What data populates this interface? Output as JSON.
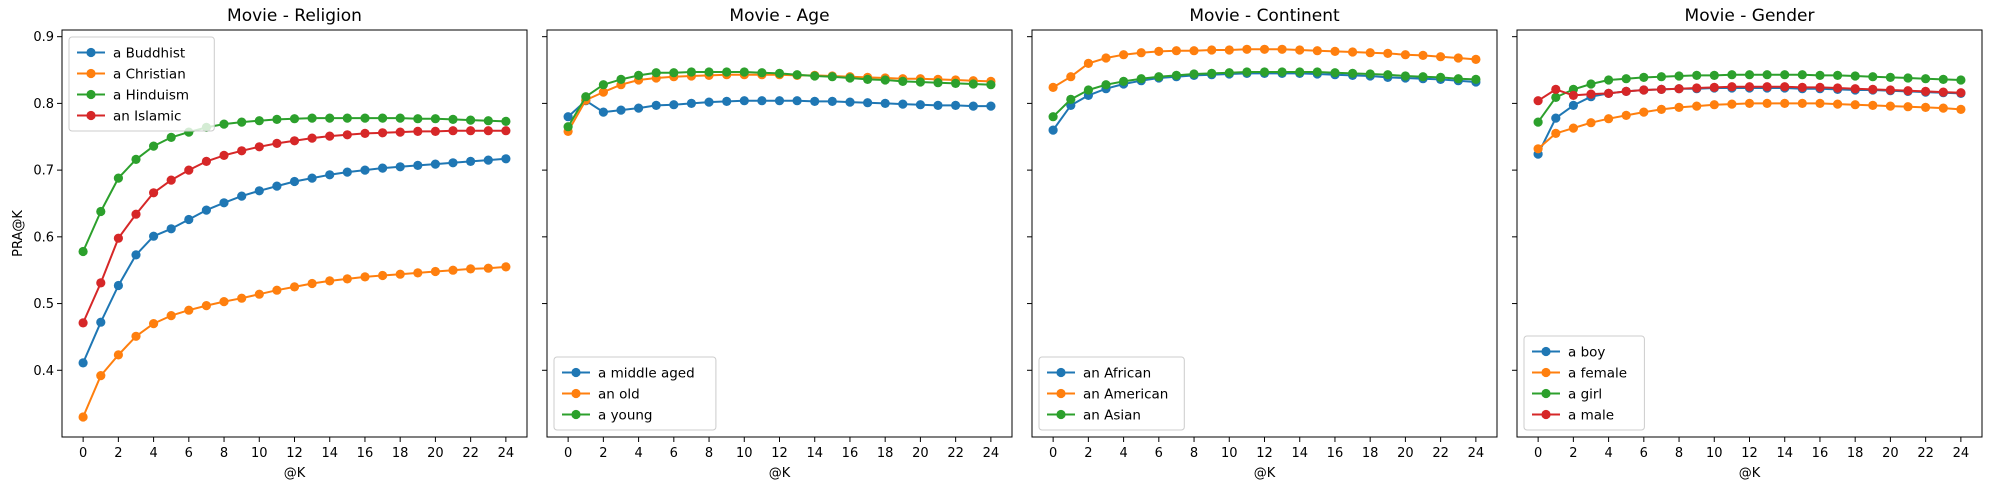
{
  "chart_data": [
    {
      "type": "line",
      "title": "Movie - Religion",
      "xlabel": "@K",
      "ylabel": "PRA@K",
      "ylim": [
        0.3,
        0.91
      ],
      "xlim": [
        -1.2,
        25.2
      ],
      "x": [
        0,
        1,
        2,
        3,
        4,
        5,
        6,
        7,
        8,
        9,
        10,
        11,
        12,
        13,
        14,
        15,
        16,
        17,
        18,
        19,
        20,
        21,
        22,
        23,
        24
      ],
      "x_ticks": [
        0,
        2,
        4,
        6,
        8,
        10,
        12,
        14,
        16,
        18,
        20,
        22,
        24
      ],
      "y_ticks": [
        0.4,
        0.5,
        0.6,
        0.7,
        0.8,
        0.9
      ],
      "y_tick_labels": [
        "0.4",
        "0.5",
        "0.6",
        "0.7",
        "0.8",
        "0.9"
      ],
      "legend_position": "top-left",
      "series": [
        {
          "name": "a Buddhist",
          "color": "#1f77b4",
          "values": [
            0.411,
            0.472,
            0.527,
            0.573,
            0.601,
            0.612,
            0.626,
            0.64,
            0.651,
            0.661,
            0.669,
            0.676,
            0.683,
            0.688,
            0.693,
            0.697,
            0.7,
            0.703,
            0.705,
            0.707,
            0.709,
            0.711,
            0.713,
            0.715,
            0.717
          ]
        },
        {
          "name": "a Christian",
          "color": "#ff7f0e",
          "values": [
            0.33,
            0.392,
            0.423,
            0.451,
            0.47,
            0.482,
            0.49,
            0.497,
            0.503,
            0.508,
            0.514,
            0.52,
            0.525,
            0.53,
            0.534,
            0.537,
            0.54,
            0.542,
            0.544,
            0.546,
            0.548,
            0.55,
            0.552,
            0.553,
            0.555
          ]
        },
        {
          "name": "a Hinduism",
          "color": "#2ca02c",
          "values": [
            0.578,
            0.638,
            0.688,
            0.716,
            0.736,
            0.749,
            0.757,
            0.764,
            0.769,
            0.772,
            0.774,
            0.776,
            0.777,
            0.778,
            0.778,
            0.778,
            0.778,
            0.778,
            0.778,
            0.777,
            0.777,
            0.776,
            0.775,
            0.774,
            0.773
          ]
        },
        {
          "name": "an Islamic",
          "color": "#d62728",
          "values": [
            0.471,
            0.531,
            0.598,
            0.634,
            0.666,
            0.685,
            0.7,
            0.713,
            0.722,
            0.729,
            0.735,
            0.74,
            0.744,
            0.748,
            0.751,
            0.753,
            0.755,
            0.756,
            0.757,
            0.758,
            0.758,
            0.759,
            0.759,
            0.759,
            0.759
          ]
        }
      ]
    },
    {
      "type": "line",
      "title": "Movie - Age",
      "xlabel": "@K",
      "ylabel": "",
      "ylim": [
        0.3,
        0.91
      ],
      "xlim": [
        -1.2,
        25.2
      ],
      "x": [
        0,
        1,
        2,
        3,
        4,
        5,
        6,
        7,
        8,
        9,
        10,
        11,
        12,
        13,
        14,
        15,
        16,
        17,
        18,
        19,
        20,
        21,
        22,
        23,
        24
      ],
      "x_ticks": [
        0,
        2,
        4,
        6,
        8,
        10,
        12,
        14,
        16,
        18,
        20,
        22,
        24
      ],
      "y_ticks": [
        0.4,
        0.5,
        0.6,
        0.7,
        0.8,
        0.9
      ],
      "y_tick_labels": [],
      "legend_position": "bottom-left",
      "series": [
        {
          "name": "a middle aged",
          "color": "#1f77b4",
          "values": [
            0.78,
            0.804,
            0.787,
            0.79,
            0.793,
            0.797,
            0.798,
            0.8,
            0.802,
            0.803,
            0.804,
            0.804,
            0.804,
            0.804,
            0.803,
            0.803,
            0.802,
            0.801,
            0.8,
            0.799,
            0.798,
            0.797,
            0.797,
            0.796,
            0.796
          ]
        },
        {
          "name": "an old",
          "color": "#ff7f0e",
          "values": [
            0.758,
            0.805,
            0.817,
            0.828,
            0.835,
            0.838,
            0.84,
            0.841,
            0.842,
            0.843,
            0.843,
            0.843,
            0.843,
            0.842,
            0.842,
            0.841,
            0.84,
            0.839,
            0.838,
            0.837,
            0.837,
            0.836,
            0.835,
            0.834,
            0.833
          ]
        },
        {
          "name": "a young",
          "color": "#2ca02c",
          "values": [
            0.765,
            0.81,
            0.828,
            0.836,
            0.842,
            0.846,
            0.846,
            0.847,
            0.847,
            0.847,
            0.847,
            0.846,
            0.845,
            0.843,
            0.841,
            0.84,
            0.838,
            0.836,
            0.835,
            0.833,
            0.832,
            0.831,
            0.83,
            0.829,
            0.828
          ]
        }
      ]
    },
    {
      "type": "line",
      "title": "Movie - Continent",
      "xlabel": "@K",
      "ylabel": "",
      "ylim": [
        0.3,
        0.91
      ],
      "xlim": [
        -1.2,
        25.2
      ],
      "x": [
        0,
        1,
        2,
        3,
        4,
        5,
        6,
        7,
        8,
        9,
        10,
        11,
        12,
        13,
        14,
        15,
        16,
        17,
        18,
        19,
        20,
        21,
        22,
        23,
        24
      ],
      "x_ticks": [
        0,
        2,
        4,
        6,
        8,
        10,
        12,
        14,
        16,
        18,
        20,
        22,
        24
      ],
      "y_ticks": [
        0.4,
        0.5,
        0.6,
        0.7,
        0.8,
        0.9
      ],
      "y_tick_labels": [],
      "legend_position": "bottom-left",
      "series": [
        {
          "name": "an African",
          "color": "#1f77b4",
          "values": [
            0.76,
            0.797,
            0.812,
            0.822,
            0.829,
            0.834,
            0.838,
            0.84,
            0.842,
            0.843,
            0.844,
            0.845,
            0.845,
            0.845,
            0.845,
            0.844,
            0.843,
            0.842,
            0.841,
            0.839,
            0.838,
            0.837,
            0.836,
            0.834,
            0.832
          ]
        },
        {
          "name": "an American",
          "color": "#ff7f0e",
          "values": [
            0.824,
            0.84,
            0.86,
            0.868,
            0.873,
            0.876,
            0.878,
            0.879,
            0.879,
            0.88,
            0.88,
            0.881,
            0.881,
            0.881,
            0.88,
            0.879,
            0.878,
            0.877,
            0.876,
            0.875,
            0.873,
            0.872,
            0.87,
            0.868,
            0.866
          ]
        },
        {
          "name": "an Asian",
          "color": "#2ca02c",
          "values": [
            0.78,
            0.806,
            0.82,
            0.828,
            0.833,
            0.837,
            0.84,
            0.842,
            0.844,
            0.845,
            0.846,
            0.847,
            0.847,
            0.847,
            0.847,
            0.847,
            0.846,
            0.845,
            0.844,
            0.843,
            0.841,
            0.84,
            0.839,
            0.837,
            0.836
          ]
        }
      ]
    },
    {
      "type": "line",
      "title": "Movie - Gender",
      "xlabel": "@K",
      "ylabel": "",
      "ylim": [
        0.3,
        0.91
      ],
      "xlim": [
        -1.2,
        25.2
      ],
      "x": [
        0,
        1,
        2,
        3,
        4,
        5,
        6,
        7,
        8,
        9,
        10,
        11,
        12,
        13,
        14,
        15,
        16,
        17,
        18,
        19,
        20,
        21,
        22,
        23,
        24
      ],
      "x_ticks": [
        0,
        2,
        4,
        6,
        8,
        10,
        12,
        14,
        16,
        18,
        20,
        22,
        24
      ],
      "y_ticks": [
        0.4,
        0.5,
        0.6,
        0.7,
        0.8,
        0.9
      ],
      "y_tick_labels": [],
      "legend_position": "bottom-left",
      "series": [
        {
          "name": "a boy",
          "color": "#1f77b4",
          "values": [
            0.724,
            0.778,
            0.797,
            0.81,
            0.815,
            0.818,
            0.82,
            0.821,
            0.822,
            0.822,
            0.823,
            0.823,
            0.823,
            0.823,
            0.823,
            0.822,
            0.822,
            0.821,
            0.82,
            0.82,
            0.819,
            0.818,
            0.817,
            0.816,
            0.815
          ]
        },
        {
          "name": "a female",
          "color": "#ff7f0e",
          "values": [
            0.732,
            0.755,
            0.763,
            0.771,
            0.777,
            0.782,
            0.787,
            0.791,
            0.794,
            0.796,
            0.798,
            0.799,
            0.8,
            0.8,
            0.8,
            0.8,
            0.8,
            0.799,
            0.798,
            0.797,
            0.796,
            0.795,
            0.794,
            0.793,
            0.791
          ]
        },
        {
          "name": "a girl",
          "color": "#2ca02c",
          "values": [
            0.772,
            0.809,
            0.821,
            0.829,
            0.835,
            0.837,
            0.839,
            0.84,
            0.841,
            0.842,
            0.842,
            0.843,
            0.843,
            0.843,
            0.843,
            0.843,
            0.842,
            0.842,
            0.841,
            0.84,
            0.839,
            0.838,
            0.837,
            0.836,
            0.835
          ]
        },
        {
          "name": "a male",
          "color": "#d62728",
          "values": [
            0.804,
            0.821,
            0.812,
            0.814,
            0.815,
            0.818,
            0.82,
            0.821,
            0.822,
            0.823,
            0.824,
            0.825,
            0.825,
            0.825,
            0.825,
            0.824,
            0.824,
            0.823,
            0.822,
            0.821,
            0.82,
            0.819,
            0.818,
            0.817,
            0.816
          ]
        }
      ]
    }
  ]
}
